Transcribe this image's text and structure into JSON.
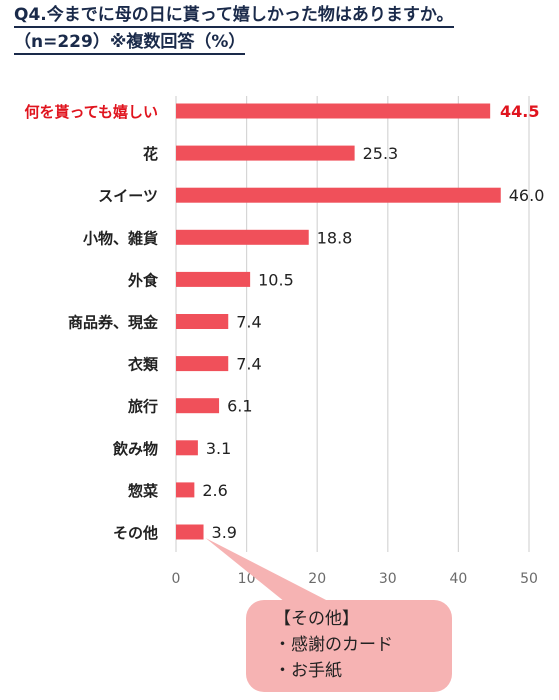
{
  "title": {
    "line1": "Q4.今までに母の日に貰って嬉しかった物はありますか。",
    "line2": "（n=229）※複数回答（%）"
  },
  "chart_data": {
    "type": "bar",
    "orientation": "horizontal",
    "categories": [
      "何を貰っても嬉しい",
      "花",
      "スイーツ",
      "小物、雑貨",
      "外食",
      "商品券、現金",
      "衣類",
      "旅行",
      "飲み物",
      "惣菜",
      "その他"
    ],
    "values": [
      44.5,
      25.3,
      46.0,
      18.8,
      10.5,
      7.4,
      7.4,
      6.1,
      3.1,
      2.6,
      3.9
    ],
    "value_labels": [
      "44.5",
      "25.3",
      "46.0",
      "18.8",
      "10.5",
      "7.4",
      "7.4",
      "6.1",
      "3.1",
      "2.6",
      "3.9"
    ],
    "highlight_index": 0,
    "xlim": [
      0,
      50
    ],
    "xticks": [
      "0",
      "10",
      "20",
      "30",
      "40",
      "50"
    ],
    "grid": true,
    "bar_color": "#f0505a",
    "highlight_color": "#e0141e"
  },
  "callout": {
    "heading": "【その他】",
    "items": [
      "・感謝のカード",
      "・お手紙"
    ]
  }
}
